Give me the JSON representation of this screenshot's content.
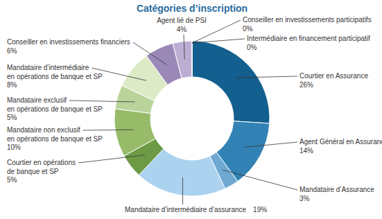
{
  "chart_data": {
    "type": "pie",
    "title": "Catégories d’inscription",
    "categories": [
      "Courtier en Assurance",
      "Agent Général en Assurance",
      "Mandataire d’Assurance",
      "Mandataire d’intermédiaire d’assurance",
      "Courtier en opérations de banque et SP",
      "Mandataire non exclusif en opérations de banque et SP",
      "Mandataire exclusif en opérations de banque et SP",
      "Mandataire d’intermédiaire en opérations de banque et SP",
      "Conseiller en investissements financiers",
      "Agent lié de PSI",
      "Conseiller en investissements participatifs",
      "Intermédiaire en financement participatif"
    ],
    "values": [
      26,
      14,
      3,
      19,
      5,
      10,
      5,
      8,
      6,
      4,
      0,
      0
    ],
    "value_labels": [
      "26%",
      "14%",
      "3%",
      "19%",
      "5%",
      "10%",
      "5%",
      "8%",
      "6%",
      "4%",
      "0%",
      "0%"
    ],
    "colors": [
      "#135f8f",
      "#3282b5",
      "#6fa9d2",
      "#abd2ef",
      "#6c9a45",
      "#97bb69",
      "#b9d49a",
      "#dceac6",
      "#9a88b8",
      "#bcaed3",
      "#7f7f7f",
      "#a0a0a0"
    ],
    "data_labels": true
  }
}
